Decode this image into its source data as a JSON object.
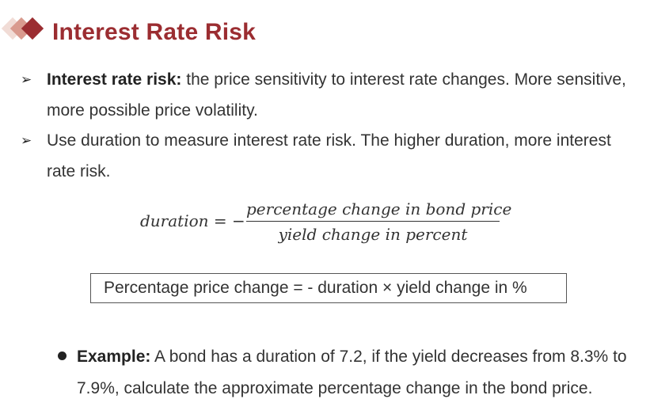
{
  "slide": {
    "title": "Interest Rate Risk"
  },
  "bullets": [
    {
      "marker": "➢",
      "lead": "Interest rate risk:",
      "text": "  the price sensitivity to interest rate changes. More sensitive, more possible price volatility."
    },
    {
      "marker": "➢",
      "lead": "",
      "text": "Use duration to measure interest rate risk. The higher duration, more interest rate risk."
    }
  ],
  "formula": {
    "lhs": "duration = −",
    "numerator": "percentage change in bond price",
    "denominator": "yield change in percent"
  },
  "boxed_equation": "Percentage price change = - duration × yield change in %",
  "example": {
    "lead": "Example:",
    "text": " A bond has a duration of 7.2, if the yield decreases from 8.3% to 7.9%, calculate the approximate percentage change in the bond price."
  },
  "colors": {
    "title": "#9b2d31",
    "diamond_light": "#f1dcd6",
    "diamond_mid": "#d99a8e",
    "diamond_dark": "#9b2d31",
    "text": "#333333"
  }
}
